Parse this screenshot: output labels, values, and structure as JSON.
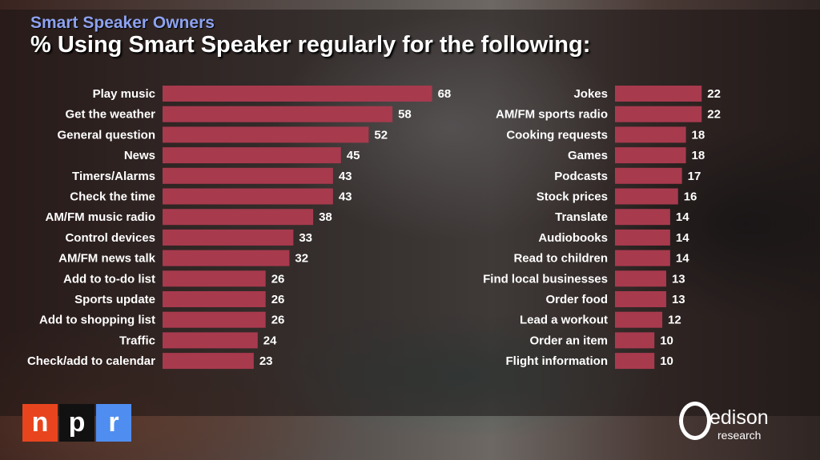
{
  "header": {
    "subtitle": "Smart Speaker Owners",
    "title": "% Using Smart Speaker regularly for the following:"
  },
  "logos": {
    "npr": [
      "n",
      "p",
      "r"
    ],
    "edison": "edison",
    "edison_sub": "research"
  },
  "colors": {
    "bar": "#a83a4e",
    "subtitle": "#8da2f0",
    "npr": [
      "#e8451f",
      "#111111",
      "#4f8ef0"
    ]
  },
  "chart_data": [
    {
      "type": "bar",
      "orientation": "horizontal",
      "xlim": [
        0,
        70
      ],
      "categories": [
        "Play music",
        "Get the weather",
        "General question",
        "News",
        "Timers/Alarms",
        "Check the time",
        "AM/FM music radio",
        "Control devices",
        "AM/FM news talk",
        "Add to to-do list",
        "Sports update",
        "Add to shopping list",
        "Traffic",
        "Check/add to calendar"
      ],
      "values": [
        68,
        58,
        52,
        45,
        43,
        43,
        38,
        33,
        32,
        26,
        26,
        26,
        24,
        23
      ]
    },
    {
      "type": "bar",
      "orientation": "horizontal",
      "xlim": [
        0,
        70
      ],
      "categories": [
        "Jokes",
        "AM/FM sports radio",
        "Cooking requests",
        "Games",
        "Podcasts",
        "Stock prices",
        "Translate",
        "Audiobooks",
        "Read to children",
        "Find local businesses",
        "Order food",
        "Lead a workout",
        "Order an item",
        "Flight information"
      ],
      "values": [
        22,
        22,
        18,
        18,
        17,
        16,
        14,
        14,
        14,
        13,
        13,
        12,
        10,
        10
      ]
    }
  ]
}
